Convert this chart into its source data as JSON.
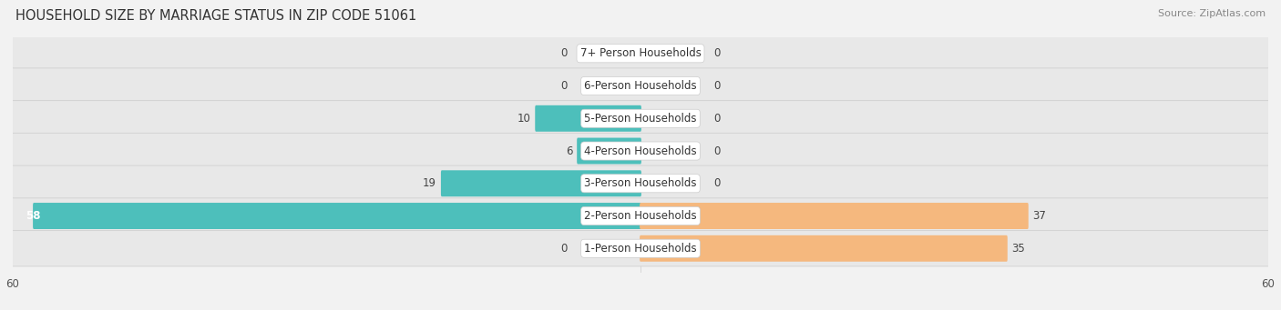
{
  "title": "HOUSEHOLD SIZE BY MARRIAGE STATUS IN ZIP CODE 51061",
  "source": "Source: ZipAtlas.com",
  "categories": [
    "7+ Person Households",
    "6-Person Households",
    "5-Person Households",
    "4-Person Households",
    "3-Person Households",
    "2-Person Households",
    "1-Person Households"
  ],
  "family": [
    0,
    0,
    10,
    6,
    19,
    58,
    0
  ],
  "nonfamily": [
    0,
    0,
    0,
    0,
    0,
    37,
    35
  ],
  "family_color": "#4dbfbb",
  "nonfamily_color": "#f5b87e",
  "xlim": 60,
  "background_color": "#f2f2f2",
  "row_bg_color": "#e8e8e8",
  "row_border_color": "#d0d0d0",
  "title_fontsize": 10.5,
  "source_fontsize": 8,
  "label_fontsize": 8.5,
  "value_fontsize": 8.5,
  "axis_fontsize": 8.5,
  "legend_fontsize": 9
}
